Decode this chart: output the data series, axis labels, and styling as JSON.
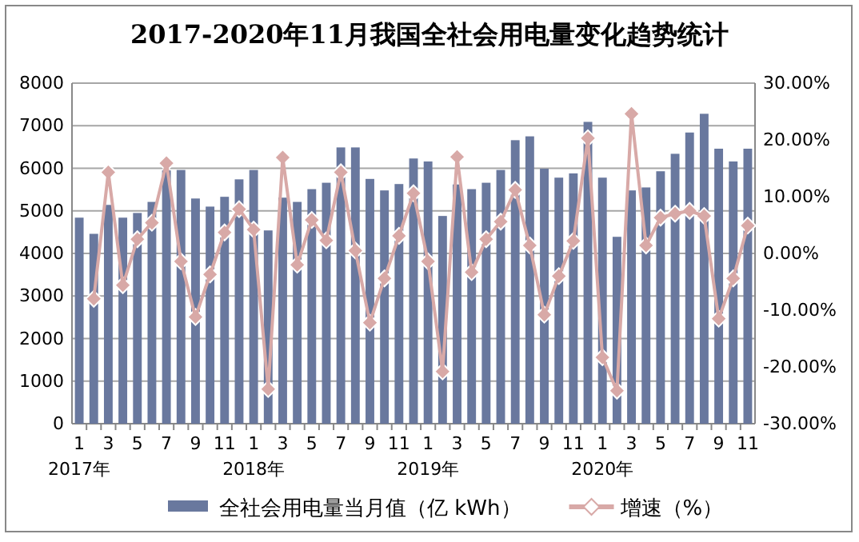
{
  "chart_data": {
    "type": "bar",
    "title": "2017-2020年11月我国全社会用电量变化趋势统计",
    "categories": [
      "1\n2017年",
      null,
      "3",
      null,
      "5",
      null,
      "7",
      null,
      "9",
      null,
      "11",
      null,
      "1\n2018年",
      null,
      "3",
      null,
      "5",
      null,
      "7",
      null,
      "9",
      null,
      "11",
      null,
      "1\n2019年",
      null,
      "3",
      null,
      "5",
      null,
      "7",
      null,
      "9",
      null,
      "11",
      null,
      "1\n2020年",
      null,
      "3",
      null,
      "5",
      null,
      "7",
      null,
      "9",
      null,
      "11"
    ],
    "series": [
      {
        "name": "全社会用电量当月值（亿 kWh）",
        "type": "bar",
        "color": "#69789e",
        "values": [
          4840,
          4460,
          5140,
          4840,
          4950,
          5210,
          5950,
          5960,
          5290,
          5100,
          5330,
          5740,
          5960,
          4540,
          5310,
          5210,
          5510,
          5660,
          6490,
          6490,
          5750,
          5480,
          5630,
          6230,
          6160,
          4880,
          5620,
          5510,
          5660,
          5960,
          6660,
          6750,
          5990,
          5780,
          5880,
          7090,
          5780,
          4390,
          5480,
          5550,
          5930,
          6340,
          6840,
          7280,
          6460,
          6160,
          6460
        ]
      },
      {
        "name": "增速（%）",
        "type": "line",
        "axis": "y2",
        "color": "#d8a9a7",
        "marker": "diamond",
        "values": [
          null,
          -8.0,
          14.3,
          -5.6,
          2.5,
          5.4,
          15.9,
          -1.4,
          -11.2,
          -3.7,
          3.7,
          7.8,
          4.2,
          -23.9,
          16.9,
          -2.0,
          5.9,
          2.3,
          14.3,
          0.5,
          -12.2,
          -4.4,
          3.1,
          10.6,
          -1.4,
          -20.8,
          17.0,
          -3.3,
          2.5,
          5.6,
          11.2,
          1.4,
          -10.8,
          -4.0,
          2.2,
          20.3,
          -18.3,
          -24.2,
          24.6,
          1.4,
          6.3,
          7.0,
          7.5,
          6.6,
          -11.5,
          -4.4,
          4.9
        ]
      }
    ],
    "ylim": [
      0,
      8000
    ],
    "yticks": [
      0,
      1000,
      2000,
      3000,
      4000,
      5000,
      6000,
      7000,
      8000
    ],
    "y2lim": [
      -30,
      30
    ],
    "y2ticks": [
      {
        "value": -30,
        "label": "-30.00%"
      },
      {
        "value": -20,
        "label": "-20.00%"
      },
      {
        "value": -10,
        "label": "-10.00%"
      },
      {
        "value": 0,
        "label": "0.00%"
      },
      {
        "value": 10,
        "label": "10.00%"
      },
      {
        "value": 20,
        "label": "20.00%"
      },
      {
        "value": 30,
        "label": "30.00%"
      }
    ],
    "grid": "y",
    "legend": "bottom"
  }
}
